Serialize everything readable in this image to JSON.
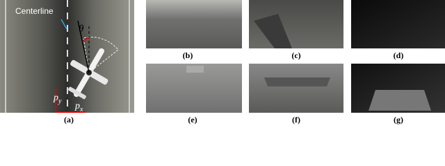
{
  "figure": {
    "panel_a": {
      "label": "(a)",
      "centerline": "Centerline",
      "theta": "θ",
      "p_y": {
        "base": "p",
        "sub": "y"
      },
      "p_x": {
        "base": "p",
        "sub": "x"
      }
    },
    "panels": [
      {
        "label": "(b)"
      },
      {
        "label": "(c)"
      },
      {
        "label": "(d)"
      },
      {
        "label": "(e)"
      },
      {
        "label": "(f)"
      },
      {
        "label": "(g)"
      }
    ]
  }
}
